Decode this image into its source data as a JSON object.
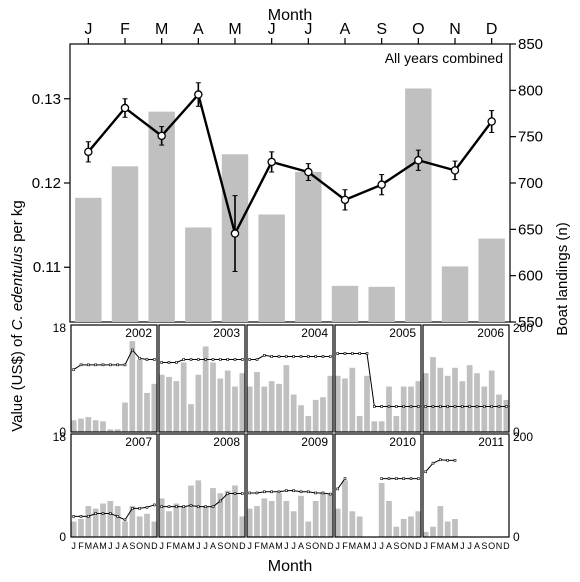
{
  "chart_data": [
    {
      "type": "bar",
      "panel": "main",
      "title": "All years combined",
      "categories": [
        "J",
        "F",
        "M",
        "A",
        "M",
        "J",
        "J",
        "A",
        "S",
        "O",
        "N",
        "D"
      ],
      "top_axis_label": "Month",
      "left_ylabel": "Value (US$) of C. edentulus per kg",
      "left_ylabel_parts": [
        "Value (US$) of ",
        "C. edentulus",
        " per kg"
      ],
      "right_ylabel": "Boat landings (n)",
      "left_ylim": [
        0.1035,
        0.1365
      ],
      "left_ticks": [
        "0.11",
        "0.12",
        "0.13"
      ],
      "left_tick_values": [
        0.11,
        0.12,
        0.13
      ],
      "right_ylim": [
        550,
        850
      ],
      "right_ticks": [
        "550",
        "600",
        "650",
        "700",
        "750",
        "800",
        "850"
      ],
      "right_tick_values": [
        550,
        600,
        650,
        700,
        750,
        800,
        850
      ],
      "bars_boat_landings": [
        684,
        718,
        777,
        652,
        731,
        666,
        712,
        589,
        588,
        802,
        610,
        640
      ],
      "line_value_per_kg": [
        0.1237,
        0.1289,
        0.1256,
        0.1305,
        0.114,
        0.1225,
        0.1213,
        0.118,
        0.1198,
        0.1227,
        0.1215,
        0.1273
      ],
      "line_error": [
        0.0012,
        0.0011,
        0.0011,
        0.0014,
        0.0045,
        0.0012,
        0.001,
        0.0012,
        0.0012,
        0.0012,
        0.0011,
        0.0013
      ],
      "bar_color": "#c0c0c0",
      "line_color": "#000000"
    },
    {
      "type": "bar",
      "panel": "small_multiples",
      "categories": [
        "J",
        "F",
        "M",
        "A",
        "M",
        "J",
        "J",
        "A",
        "S",
        "O",
        "N",
        "D"
      ],
      "x_tick_labels": [
        "J",
        "F",
        "M",
        "A",
        "M",
        "J",
        "J",
        "A",
        "S",
        "O",
        "N",
        "D"
      ],
      "xlabel": "Month",
      "left_ticks": [
        "0",
        "18"
      ],
      "left_ylim": [
        0,
        18
      ],
      "right_ticks": [
        "0",
        "200"
      ],
      "right_ylim": [
        0,
        200
      ],
      "years": [
        {
          "year": "2002",
          "bars": [
            22,
            25,
            28,
            22,
            20,
            5,
            5,
            55,
            170,
            135,
            73,
            90
          ],
          "line": [
            10.5,
            11.3,
            11.3,
            11.3,
            11.3,
            11.3,
            11.3,
            11.3,
            13.8,
            12.4,
            12.2,
            12.2
          ]
        },
        {
          "year": "2003",
          "bars": [
            107,
            103,
            95,
            130,
            52,
            107,
            160,
            130,
            100,
            115,
            85,
            110
          ],
          "line": [
            11.7,
            11.7,
            11.7,
            12.2,
            12.2,
            12.2,
            12.2,
            12.2,
            12.2,
            12.2,
            12.2,
            12.2
          ]
        },
        {
          "year": "2004",
          "bars": [
            85,
            112,
            85,
            95,
            90,
            125,
            70,
            50,
            30,
            60,
            65,
            105
          ],
          "line": [
            12.2,
            12.2,
            12.9,
            12.7,
            12.7,
            12.7,
            12.7,
            12.7,
            12.7,
            12.7,
            12.7,
            12.7
          ]
        },
        {
          "year": "2005",
          "bars": [
            105,
            100,
            120,
            30,
            105,
            20,
            20,
            85,
            30,
            85,
            85,
            95
          ],
          "line": [
            13.2,
            13.2,
            13.2,
            13.2,
            13.2,
            4.3,
            4.3,
            4.3,
            4.3,
            4.3,
            4.3,
            4.3
          ]
        },
        {
          "year": "2006",
          "bars": [
            110,
            140,
            120,
            105,
            120,
            95,
            125,
            110,
            85,
            115,
            70,
            60
          ],
          "line": [
            4.3,
            4.3,
            4.3,
            4.3,
            4.3,
            4.3,
            4.3,
            4.3,
            4.3,
            4.3,
            4.3,
            4.3
          ]
        },
        {
          "year": "2007",
          "bars": [
            30,
            35,
            60,
            55,
            65,
            70,
            60,
            30,
            60,
            40,
            45,
            30
          ],
          "line": [
            3.6,
            3.6,
            3.6,
            4.1,
            4.1,
            4.1,
            3.6,
            3.0,
            5.0,
            5.0,
            5.2,
            5.6
          ]
        },
        {
          "year": "2008",
          "bars": [
            75,
            50,
            65,
            60,
            100,
            110,
            60,
            95,
            85,
            90,
            100,
            40
          ],
          "line": [
            5.3,
            5.3,
            5.3,
            5.3,
            5.5,
            5.3,
            5.3,
            5.3,
            6.3,
            7.6,
            7.6,
            7.6
          ]
        },
        {
          "year": "2009",
          "bars": [
            55,
            60,
            75,
            70,
            85,
            70,
            50,
            80,
            30,
            70,
            85,
            85
          ],
          "line": [
            7.7,
            7.7,
            7.9,
            7.9,
            7.9,
            8.1,
            8.1,
            7.9,
            7.9,
            7.7,
            7.7,
            7.5
          ]
        },
        {
          "year": "2010",
          "bars": [
            55,
            110,
            50,
            40,
            null,
            null,
            105,
            70,
            20,
            35,
            40,
            50
          ],
          "line": [
            8.4,
            10.2,
            null,
            null,
            null,
            null,
            10.2,
            10.2,
            10.2,
            10.2,
            10.2,
            10.2
          ]
        },
        {
          "year": "2011",
          "bars": [
            10,
            20,
            60,
            30,
            35,
            null,
            null,
            null,
            null,
            null,
            null,
            null
          ],
          "line": [
            11.4,
            12.9,
            13.5,
            13.4,
            13.4,
            null,
            null,
            null,
            null,
            null,
            null,
            null
          ]
        }
      ]
    }
  ]
}
